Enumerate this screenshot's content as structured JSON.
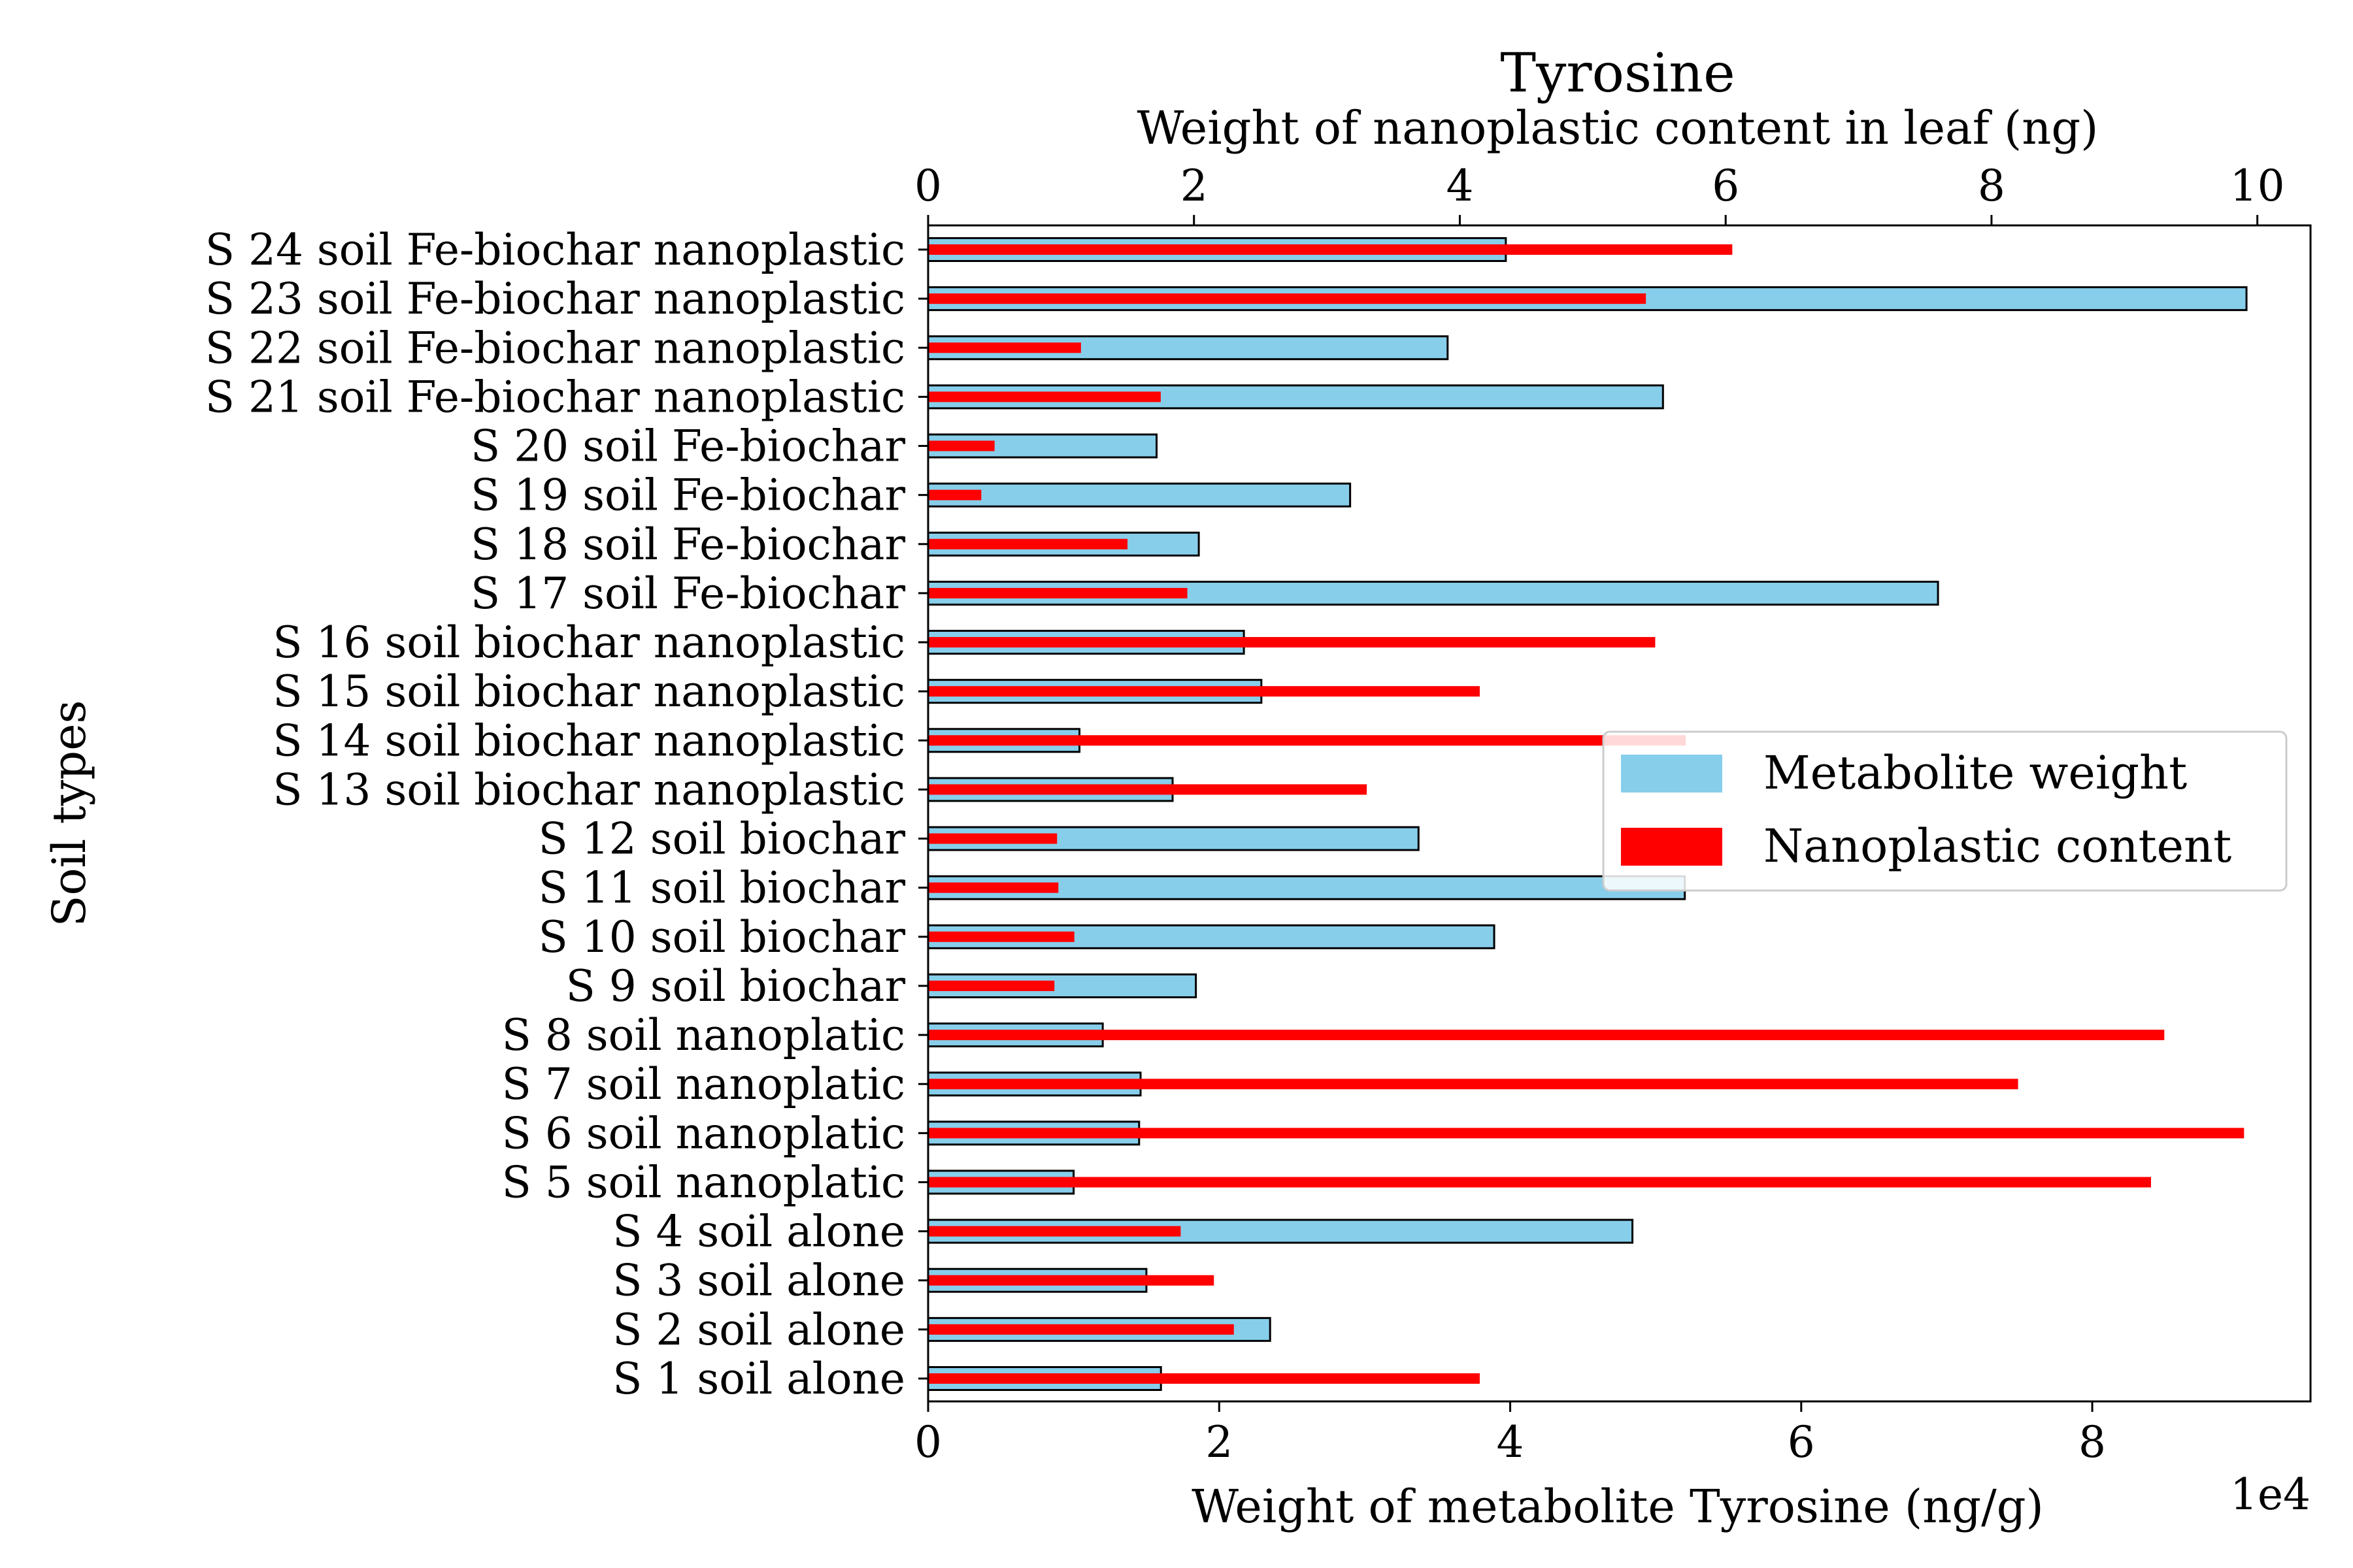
{
  "chart_data": {
    "type": "bar",
    "orientation": "horizontal",
    "title": "Tyrosine",
    "ylabel": "Soil types",
    "xlabel_bottom": "Weight of metabolite Tyrosine (ng/g)",
    "xlabel_top": "Weight of nanoplastic content in leaf (ng)",
    "bottom_axis_offset_label": "1e4",
    "xlim_bottom": [
      0,
      95000
    ],
    "xlim_top": [
      0,
      10.4
    ],
    "bottom_ticks": [
      0,
      20000,
      40000,
      60000,
      80000
    ],
    "bottom_tick_labels": [
      "0",
      "2",
      "4",
      "6",
      "8"
    ],
    "top_ticks": [
      0,
      2,
      4,
      6,
      8,
      10
    ],
    "top_tick_labels": [
      "0",
      "2",
      "4",
      "6",
      "8",
      "10"
    ],
    "categories": [
      "S 1 soil alone",
      "S 2 soil alone",
      "S 3 soil alone",
      "S 4 soil alone",
      "S 5 soil nanoplatic",
      "S 6 soil nanoplatic",
      "S 7 soil nanoplatic",
      "S 8 soil nanoplatic",
      "S 9 soil biochar",
      "S 10 soil biochar",
      "S 11 soil biochar",
      "S 12 soil biochar",
      "S 13 soil biochar nanoplastic",
      "S 14 soil biochar nanoplastic",
      "S 15 soil biochar nanoplastic",
      "S 16 soil biochar nanoplastic",
      "S 17 soil Fe-biochar",
      "S 18 soil Fe-biochar",
      "S 19 soil Fe-biochar",
      "S 20 soil Fe-biochar",
      "S 21 soil Fe-biochar nanoplastic",
      "S 22 soil Fe-biochar nanoplastic",
      "S 23 soil Fe-biochar nanoplastic",
      "S 24 soil Fe-biochar nanoplastic"
    ],
    "series": [
      {
        "name": "Metabolite weight",
        "axis": "bottom",
        "color": "#87CEEB",
        "values": [
          16000,
          23500,
          15000,
          48400,
          10000,
          14500,
          14600,
          12000,
          18400,
          38900,
          52000,
          33700,
          16800,
          10400,
          22900,
          21700,
          69400,
          18600,
          29000,
          15700,
          50500,
          35700,
          90600,
          39700
        ]
      },
      {
        "name": "Nanoplastic content",
        "axis": "top",
        "color": "#FF0000",
        "values": [
          4.15,
          2.3,
          2.15,
          1.9,
          9.2,
          9.9,
          8.2,
          9.3,
          0.95,
          1.1,
          0.98,
          0.97,
          3.3,
          5.7,
          4.15,
          5.47,
          1.95,
          1.5,
          0.4,
          0.5,
          1.75,
          1.15,
          5.4,
          6.05
        ]
      }
    ],
    "legend": {
      "position": "center-right",
      "entries": [
        "Metabolite weight",
        "Nanoplastic content"
      ]
    },
    "colors": {
      "title": "#A52A2A",
      "metabolite": "#87CEEB",
      "nanoplastic": "#FF0000"
    },
    "grid": false
  }
}
